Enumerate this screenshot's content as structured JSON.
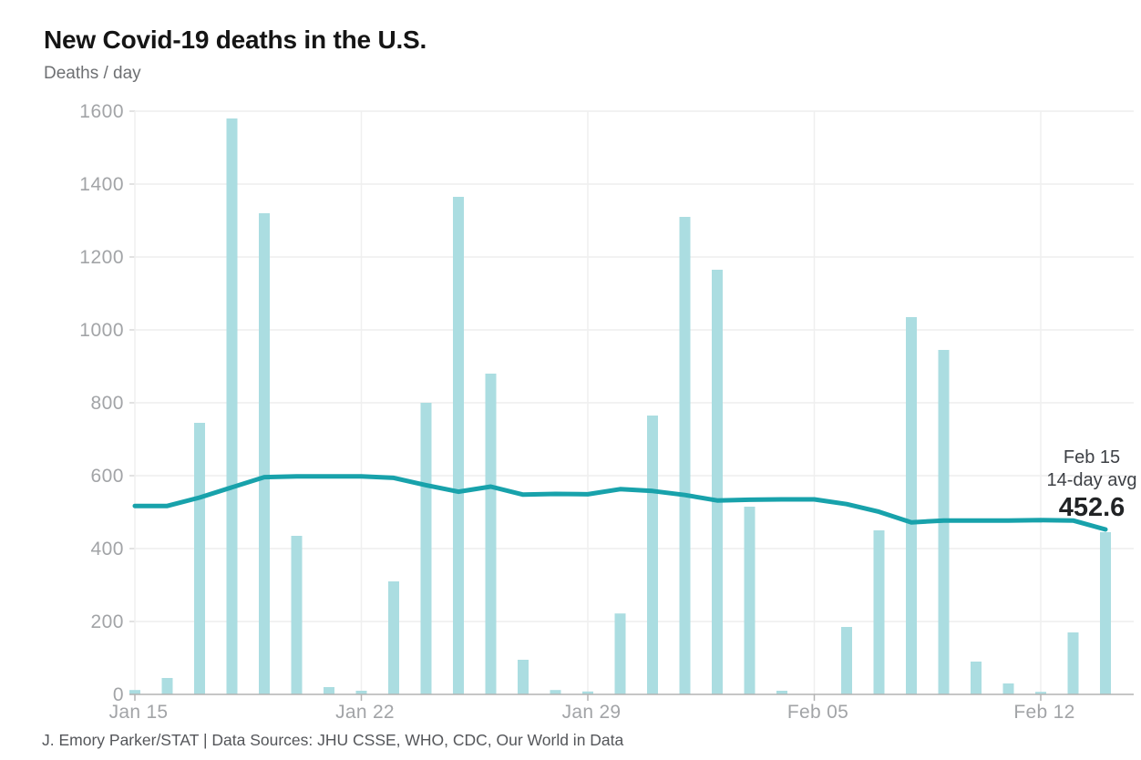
{
  "header": {
    "title": "New Covid-19 deaths in the U.S.",
    "subtitle": "Deaths / day"
  },
  "annotation": {
    "date_label": "Feb 15",
    "series_label": "14-day avg",
    "value_label": "452.6"
  },
  "footer": {
    "credit": "J. Emory Parker/STAT | Data Sources: JHU CSSE, WHO, CDC, Our World in Data"
  },
  "colors": {
    "bar": "#abdde1",
    "line": "#18a2ab",
    "gridline": "#ededed",
    "axis_line": "#b3b3b3",
    "tick_label": "#a2a4a7",
    "background": "#ffffff"
  },
  "chart_data": {
    "type": "bar",
    "title": "New Covid-19 deaths in the U.S.",
    "xlabel": "",
    "ylabel": "Deaths / day",
    "ylim": [
      0,
      1600
    ],
    "y_ticks": [
      0,
      200,
      400,
      600,
      800,
      1000,
      1200,
      1400,
      1600
    ],
    "grid": true,
    "legend": "none",
    "categories": [
      "Jan 15",
      "Jan 16",
      "Jan 17",
      "Jan 18",
      "Jan 19",
      "Jan 20",
      "Jan 21",
      "Jan 22",
      "Jan 23",
      "Jan 24",
      "Jan 25",
      "Jan 26",
      "Jan 27",
      "Jan 28",
      "Jan 29",
      "Jan 30",
      "Jan 31",
      "Feb 01",
      "Feb 02",
      "Feb 03",
      "Feb 04",
      "Feb 05",
      "Feb 06",
      "Feb 07",
      "Feb 08",
      "Feb 09",
      "Feb 10",
      "Feb 11",
      "Feb 12",
      "Feb 13",
      "Feb 14"
    ],
    "x_tick_labels": [
      "Jan 15",
      "Jan 22",
      "Jan 29",
      "Feb 05",
      "Feb 12"
    ],
    "x_tick_indices": [
      0,
      7,
      14,
      21,
      28
    ],
    "series": [
      {
        "name": "Daily deaths",
        "type": "bar",
        "values": [
          12,
          45,
          745,
          1580,
          1320,
          435,
          20,
          10,
          310,
          800,
          1365,
          880,
          95,
          12,
          8,
          222,
          765,
          1310,
          1165,
          515,
          10,
          0,
          185,
          450,
          1035,
          945,
          90,
          30,
          7,
          170,
          445
        ]
      },
      {
        "name": "14-day avg",
        "type": "line",
        "values": [
          517,
          517,
          540,
          568,
          596,
          598,
          598,
          598,
          594,
          574,
          556,
          570,
          548,
          550,
          549,
          563,
          558,
          547,
          532,
          534,
          535,
          535,
          522,
          501,
          472,
          477,
          477,
          477,
          478,
          477,
          452.6
        ]
      }
    ],
    "annotation": {
      "at": "Feb 15",
      "label": "14-day avg",
      "value": 452.6
    }
  }
}
